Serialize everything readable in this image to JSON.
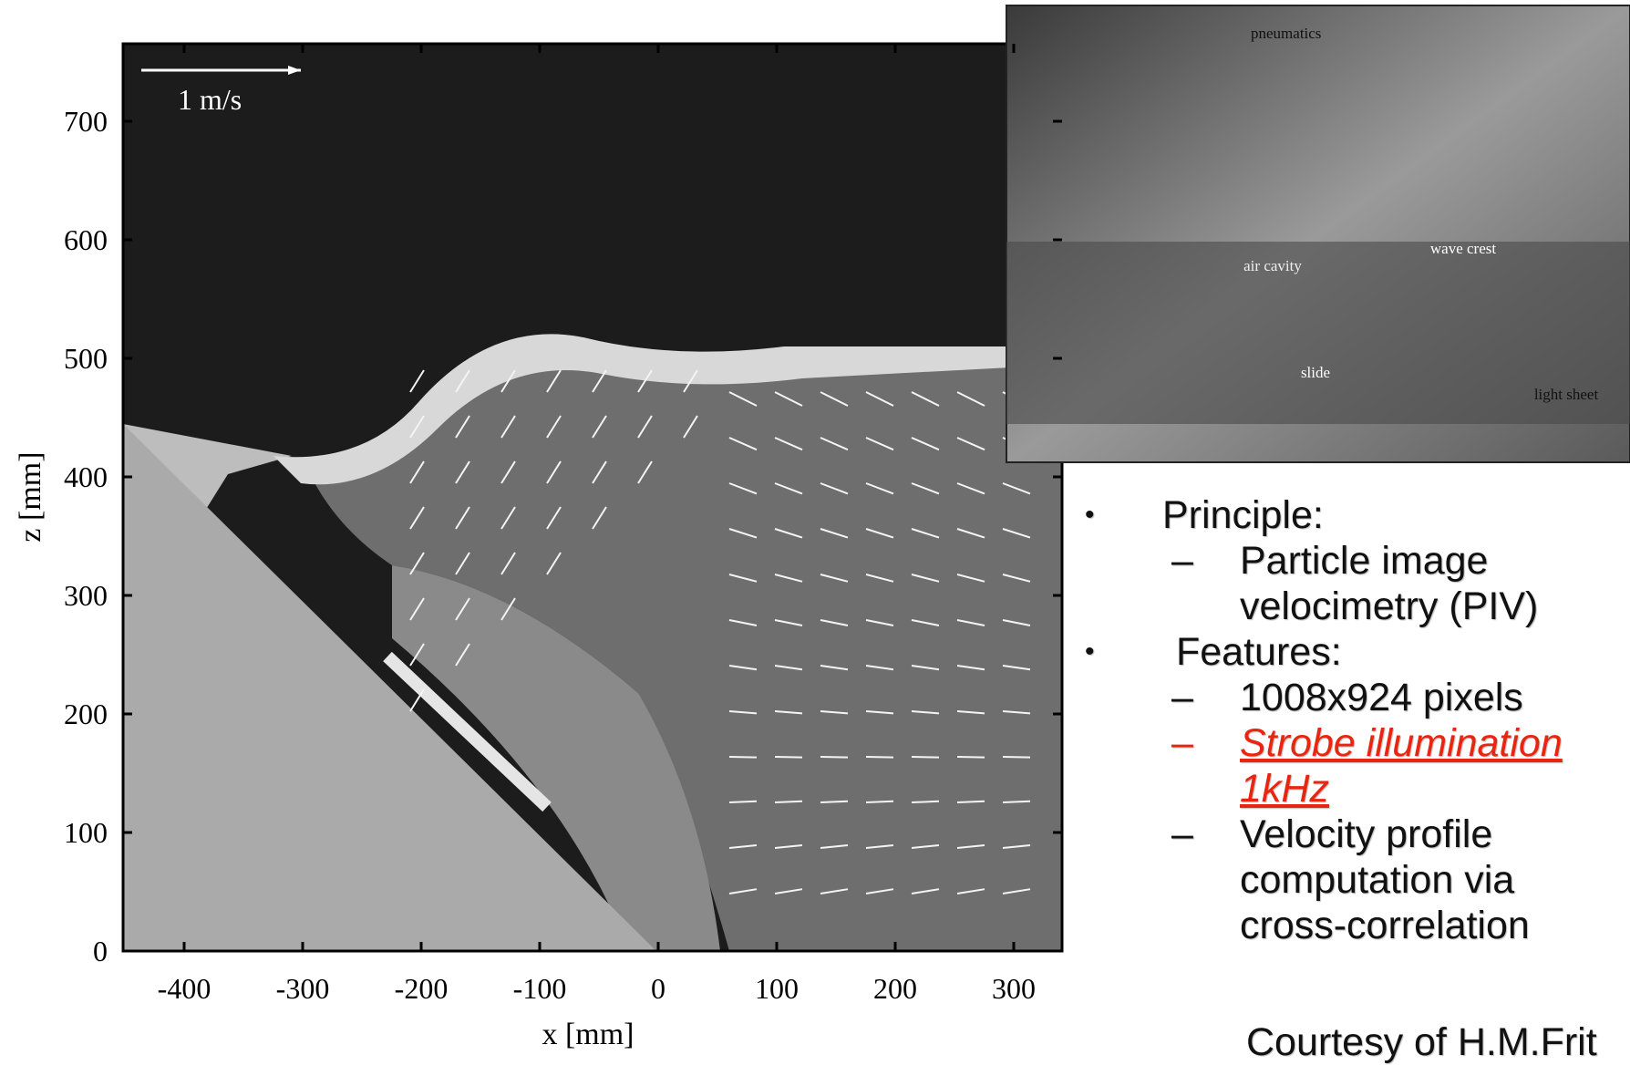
{
  "figure": {
    "x_label": "x [mm]",
    "y_label": "z [mm]",
    "scale_label": "1 m/s",
    "x_ticks": [
      -400,
      -300,
      -200,
      -100,
      0,
      100,
      200,
      300
    ],
    "y_ticks": [
      0,
      100,
      200,
      300,
      400,
      500,
      600,
      700
    ]
  },
  "photo": {
    "labels": [
      "pneumatics",
      "air cavity",
      "wave crest",
      "slide",
      "light sheet"
    ]
  },
  "bullets": [
    {
      "text": "Principle:",
      "items": [
        "Particle image velocimetry (PIV)"
      ]
    },
    {
      "text": "Features:",
      "items": [
        "1008x924 pixels",
        "Strobe illumination 1kHz",
        "Velocity profile computation via cross-correlation"
      ]
    }
  ],
  "courtesy": "Courtesy of H.M.Frit"
}
